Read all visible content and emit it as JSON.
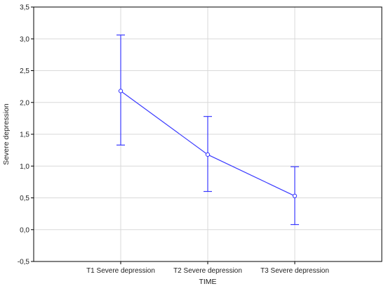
{
  "chart_data": {
    "type": "line",
    "xlabel": "TIME",
    "ylabel": "Severe depression",
    "categories": [
      "T1 Severe depression",
      "T2 Severe depression",
      "T3 Severe depression"
    ],
    "series": [
      {
        "values": [
          2.18,
          1.18,
          0.53
        ],
        "error_low": [
          1.33,
          0.6,
          0.08
        ],
        "error_high": [
          3.06,
          1.78,
          0.99
        ],
        "color": "#3b3bff"
      }
    ],
    "ylim": [
      -0.5,
      3.5
    ],
    "yticks": [
      -0.5,
      0.0,
      0.5,
      1.0,
      1.5,
      2.0,
      2.5,
      3.0,
      3.5
    ],
    "ytick_labels": [
      "-0,5",
      "0,0",
      "0,5",
      "1,0",
      "1,5",
      "2,0",
      "2,5",
      "3,0",
      "3,5"
    ],
    "grid": true,
    "grid_color": "#d9d9d9",
    "axis_color": "#000000"
  }
}
